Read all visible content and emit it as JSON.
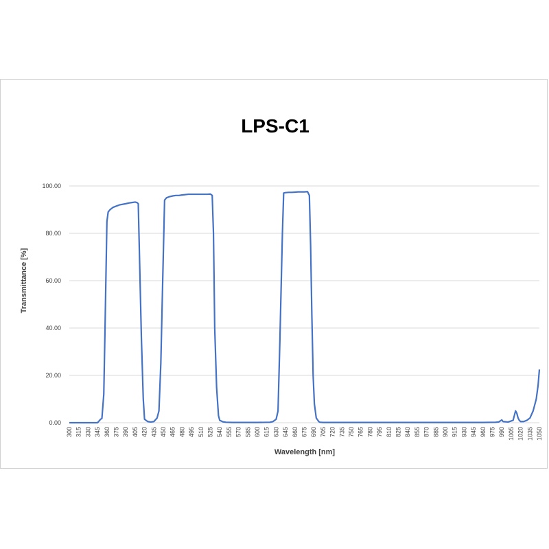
{
  "chart_data": {
    "type": "line",
    "title": "LPS-C1",
    "xlabel": "Wavelength [nm]",
    "ylabel": "Transmittance [%]",
    "xlim": [
      300,
      1050
    ],
    "ylim": [
      0,
      100
    ],
    "yticks": [
      "0.00",
      "20.00",
      "40.00",
      "60.00",
      "80.00",
      "100.00"
    ],
    "xticks": [
      "300",
      "315",
      "330",
      "345",
      "360",
      "375",
      "390",
      "405",
      "420",
      "435",
      "450",
      "465",
      "480",
      "495",
      "510",
      "525",
      "540",
      "555",
      "570",
      "585",
      "600",
      "615",
      "630",
      "645",
      "660",
      "675",
      "690",
      "705",
      "720",
      "735",
      "750",
      "765",
      "780",
      "795",
      "810",
      "825",
      "840",
      "855",
      "870",
      "885",
      "900",
      "915",
      "930",
      "945",
      "960",
      "975",
      "990",
      "1005",
      "1020",
      "1035",
      "1050"
    ],
    "grid": true,
    "legend": "none",
    "series": [
      {
        "color": "#4472c4",
        "x": [
          300,
          345,
          350,
          352,
          355,
          357,
          360,
          362,
          365,
          370,
          375,
          380,
          390,
          395,
          400,
          405,
          408,
          410,
          412,
          415,
          418,
          420,
          425,
          430,
          435,
          440,
          443,
          446,
          449,
          452,
          455,
          457,
          460,
          465,
          470,
          475,
          480,
          490,
          500,
          510,
          520,
          525,
          528,
          530,
          532,
          535,
          538,
          540,
          545,
          550,
          560,
          600,
          620,
          625,
          630,
          633,
          636,
          640,
          642,
          645,
          650,
          655,
          660,
          665,
          670,
          675,
          680,
          683,
          685,
          687,
          689,
          691,
          694,
          698,
          700,
          705,
          720,
          780,
          840,
          900,
          960,
          980,
          985,
          988,
          990,
          992,
          1000,
          1008,
          1010,
          1012,
          1014,
          1016,
          1018,
          1020,
          1025,
          1030,
          1035,
          1040,
          1045,
          1048,
          1050
        ],
        "y": [
          0.0,
          0.0,
          1.5,
          1.8,
          12,
          40,
          85,
          89,
          90,
          91,
          91.5,
          92,
          92.5,
          92.8,
          93,
          93.2,
          93,
          92.5,
          70,
          36,
          10,
          1.5,
          0.5,
          0.3,
          0.5,
          2,
          5,
          25,
          60,
          94,
          95,
          95.2,
          95.5,
          95.8,
          96,
          96,
          96.2,
          96.5,
          96.5,
          96.5,
          96.5,
          96.6,
          96,
          80,
          40,
          15,
          3,
          1,
          0.4,
          0.2,
          0.1,
          0.1,
          0.2,
          0.5,
          1.5,
          5,
          35,
          80,
          97,
          97.2,
          97.3,
          97.3,
          97.4,
          97.5,
          97.5,
          97.5,
          97.6,
          96,
          75,
          45,
          20,
          8,
          2,
          0.5,
          0.2,
          0.1,
          0.1,
          0.1,
          0.1,
          0.1,
          0.1,
          0.2,
          0.3,
          0.8,
          1.2,
          0.5,
          0.3,
          1,
          3,
          5,
          4,
          2,
          1,
          0.5,
          0.5,
          1,
          2,
          5,
          10,
          16,
          22.5
        ]
      }
    ]
  }
}
